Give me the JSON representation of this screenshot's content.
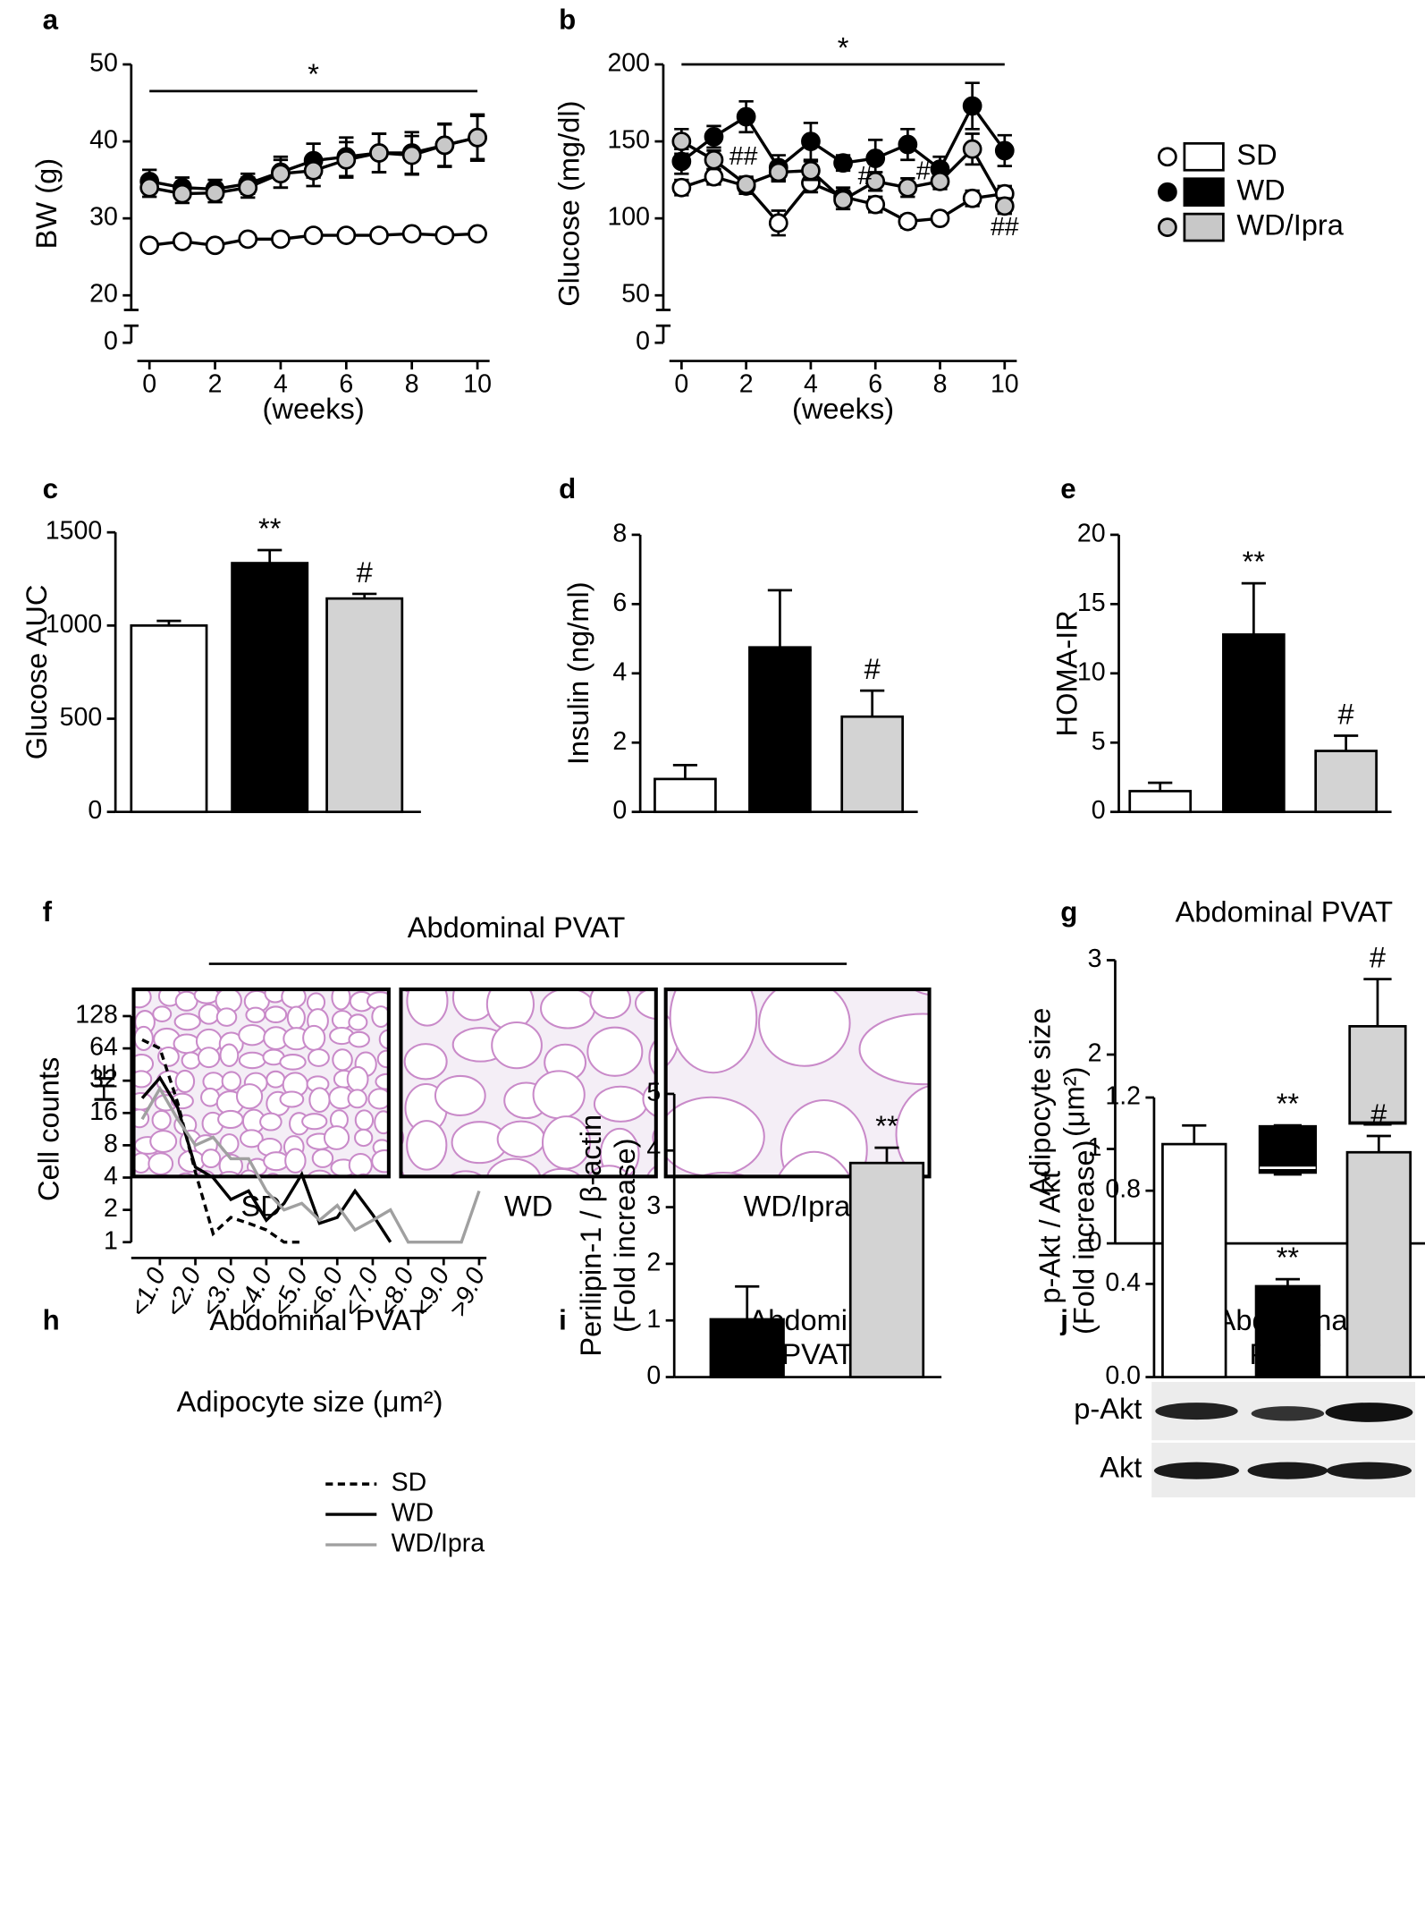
{
  "chart_data": [
    {
      "panel": "a",
      "type": "line",
      "ylabel": "BW (g)",
      "xlabel": "(weeks)",
      "axis_break": true,
      "markers": true,
      "x": [
        0,
        1,
        2,
        3,
        4,
        5,
        6,
        7,
        8,
        9,
        10
      ],
      "xlim": [
        0,
        10
      ],
      "xticks": [
        0,
        2,
        4,
        6,
        8,
        10
      ],
      "ylim": [
        0,
        50
      ],
      "yticks": [
        0,
        20,
        30,
        40,
        50
      ],
      "annotation": "*",
      "series": [
        {
          "color": "#ffffff",
          "values": [
            26.5,
            27,
            26.5,
            27.3,
            27.3,
            27.8,
            27.8,
            27.8,
            28,
            27.8,
            28
          ],
          "errors": [
            0.5,
            0.5,
            0.5,
            0.5,
            0.5,
            0.5,
            0.5,
            0.5,
            0.5,
            0.5,
            0.5
          ]
        },
        {
          "color": "#000000",
          "values": [
            34.8,
            34,
            33.8,
            34.5,
            36,
            37.5,
            38,
            38.5,
            38.5,
            39.5,
            40.5
          ],
          "errors": [
            1.5,
            1.3,
            1.2,
            1.3,
            2,
            2.2,
            2.5,
            2.5,
            2.7,
            2.8,
            3
          ]
        },
        {
          "color": "#c8c8c8",
          "values": [
            34,
            33.2,
            33.3,
            34,
            35.8,
            36.2,
            37.6,
            38.5,
            38.2,
            39.5,
            40.5
          ],
          "errors": [
            1.2,
            1.2,
            1.2,
            1.3,
            1.8,
            2,
            2.3,
            2.5,
            2.5,
            2.7,
            2.8
          ]
        }
      ]
    },
    {
      "panel": "b",
      "type": "line",
      "ylabel": "Glucose (mg/dl)",
      "xlabel": "(weeks)",
      "axis_break": true,
      "markers": true,
      "legend": "right",
      "x": [
        0,
        1,
        2,
        3,
        4,
        5,
        6,
        7,
        8,
        9,
        10
      ],
      "xlim": [
        0,
        10
      ],
      "xticks": [
        0,
        2,
        4,
        6,
        8,
        10
      ],
      "ylim": [
        0,
        200
      ],
      "yticks": [
        0,
        50,
        100,
        150,
        200
      ],
      "annotation": "*",
      "point_annotations": [
        "##",
        "#",
        "#",
        "##"
      ],
      "series": [
        {
          "name": "SD",
          "color": "#ffffff",
          "values": [
            120,
            127,
            121,
            97,
            123,
            114,
            109,
            98,
            100,
            113,
            116
          ],
          "errors": [
            5,
            5,
            5,
            8,
            6,
            6,
            5,
            4,
            3,
            5,
            5
          ]
        },
        {
          "name": "WD",
          "color": "#000000",
          "values": [
            137,
            153,
            166,
            133,
            150,
            136,
            139,
            148,
            132,
            173,
            144
          ],
          "errors": [
            8,
            7,
            10,
            8,
            12,
            5,
            12,
            10,
            8,
            15,
            10
          ]
        },
        {
          "name": "WD/Ipra",
          "color": "#c8c8c8",
          "values": [
            150,
            138,
            122,
            130,
            131,
            112,
            124,
            120,
            124,
            145,
            108
          ],
          "errors": [
            8,
            6,
            5,
            6,
            6,
            6,
            6,
            6,
            5,
            10,
            5
          ]
        }
      ]
    },
    {
      "panel": "c",
      "type": "bar",
      "ylabel": "Glucose AUC",
      "ylim": [
        0,
        1500
      ],
      "yticks": [
        0,
        500,
        1000,
        1500
      ],
      "values": [
        1000,
        1335,
        1145
      ],
      "errors": [
        25,
        70,
        25
      ],
      "colors": [
        "#ffffff",
        "#000000",
        "#d3d3d3"
      ],
      "annotations": [
        null,
        "**",
        "#"
      ]
    },
    {
      "panel": "d",
      "type": "bar",
      "ylabel": "Insulin (ng/ml)",
      "ylim": [
        0,
        8
      ],
      "yticks": [
        0,
        2,
        4,
        6,
        8
      ],
      "values": [
        0.95,
        4.75,
        2.75
      ],
      "errors": [
        0.4,
        1.65,
        0.75
      ],
      "colors": [
        "#ffffff",
        "#000000",
        "#d3d3d3"
      ],
      "annotations": [
        null,
        null,
        "#"
      ]
    },
    {
      "panel": "e",
      "type": "bar",
      "ylabel": "HOMA-IR",
      "ylim": [
        0,
        20
      ],
      "yticks": [
        0,
        5,
        10,
        15,
        20
      ],
      "values": [
        1.5,
        12.8,
        4.4
      ],
      "errors": [
        0.6,
        3.7,
        1.1
      ],
      "colors": [
        "#ffffff",
        "#000000",
        "#d3d3d3"
      ],
      "annotations": [
        null,
        "**",
        "#"
      ]
    },
    {
      "panel": "g",
      "type": "box",
      "title": "Abdominal PVAT",
      "ylabel": [
        "Adipocyte size",
        "(μm²)"
      ],
      "ylim": [
        0,
        3
      ],
      "yticks": [
        0,
        1,
        2,
        3
      ],
      "boxes": [
        {
          "min": 0.37,
          "q1": 0.52,
          "median": 0.68,
          "q3": 0.76,
          "max": 0.78
        },
        {
          "min": 0.73,
          "q1": 0.75,
          "median": 0.8,
          "q3": 1.24,
          "max": 1.25
        },
        {
          "min": 1.26,
          "q1": 1.27,
          "median": 1.28,
          "q3": 2.3,
          "max": 2.8
        }
      ],
      "colors": [
        "#ffffff",
        "#000000",
        "#d3d3d3"
      ],
      "annotations": [
        null,
        "**",
        "#"
      ]
    },
    {
      "panel": "h",
      "type": "line",
      "title": "Abdominal PVAT",
      "ylabel": "Cell counts",
      "xlabel": "Adipocyte size (μm²)",
      "yscale": "log",
      "categories": [
        null,
        "<1.0",
        null,
        "<2.0",
        null,
        "<3.0",
        null,
        "<4.0",
        null,
        "<5.0",
        null,
        "<6.0",
        null,
        "<7.0",
        null,
        "<8.0",
        null,
        "<9.0",
        null,
        ">9.0"
      ],
      "ylim": [
        1,
        128
      ],
      "yticks": [
        1,
        2,
        4,
        8,
        16,
        32,
        64,
        128
      ],
      "series": [
        {
          "name": "SD",
          "color": "#000000",
          "line_style": "dashed",
          "values": [
            77,
            64,
            20,
            4.5,
            1.2,
            1.7,
            1.5,
            1.3,
            1,
            1,
            null,
            null,
            null,
            null,
            null,
            null,
            null,
            null,
            null,
            null
          ]
        },
        {
          "name": "WD",
          "color": "#000000",
          "line_style": "solid",
          "values": [
            22,
            34,
            18,
            5,
            4,
            2.5,
            3,
            1.6,
            2.3,
            4.3,
            1.5,
            1.7,
            3,
            1.8,
            1,
            null,
            null,
            null,
            null,
            null
          ]
        },
        {
          "name": "WD/Ipra",
          "color": "#a0a0a0",
          "line_style": "solid",
          "values": [
            14,
            27,
            14,
            8,
            9.5,
            6,
            6,
            3,
            2,
            2.3,
            1.6,
            2.2,
            1.3,
            1.6,
            2,
            1,
            1,
            1,
            1,
            3
          ]
        }
      ]
    },
    {
      "panel": "i",
      "type": "bar",
      "title": [
        "Abdominal",
        "PVAT"
      ],
      "ylabel": [
        "Perilipin-1 / β-actin",
        "(Fold increase)"
      ],
      "ylim": [
        0,
        5
      ],
      "yticks": [
        0,
        1,
        2,
        3,
        4,
        5
      ],
      "values": [
        1.02,
        3.78
      ],
      "errors": [
        0.58,
        0.27
      ],
      "colors": [
        "#000000",
        "#d3d3d3"
      ],
      "annotations": [
        null,
        "**"
      ]
    },
    {
      "panel": "j",
      "type": "bar",
      "title": [
        "Abdominal",
        "PVAT"
      ],
      "blot_labels": [
        "p-Akt",
        "Akt"
      ],
      "ylabel": [
        "p-Akt / Akt",
        "(Fold increase)"
      ],
      "ylim": [
        0,
        1.2
      ],
      "yticks": [
        {
          "value": 0,
          "label": "0.0"
        },
        0.4,
        0.8,
        1.2
      ],
      "values": [
        1.0,
        0.39,
        0.965
      ],
      "errors": [
        0.08,
        0.03,
        0.07
      ],
      "colors": [
        "#ffffff",
        "#000000",
        "#d3d3d3"
      ],
      "annotations": [
        null,
        "**",
        "#"
      ]
    }
  ],
  "panel_f": {
    "panel": "f",
    "title": "Abdominal PVAT",
    "stain": "HE",
    "images": [
      "SD",
      "WD",
      "WD/Ipra"
    ]
  }
}
